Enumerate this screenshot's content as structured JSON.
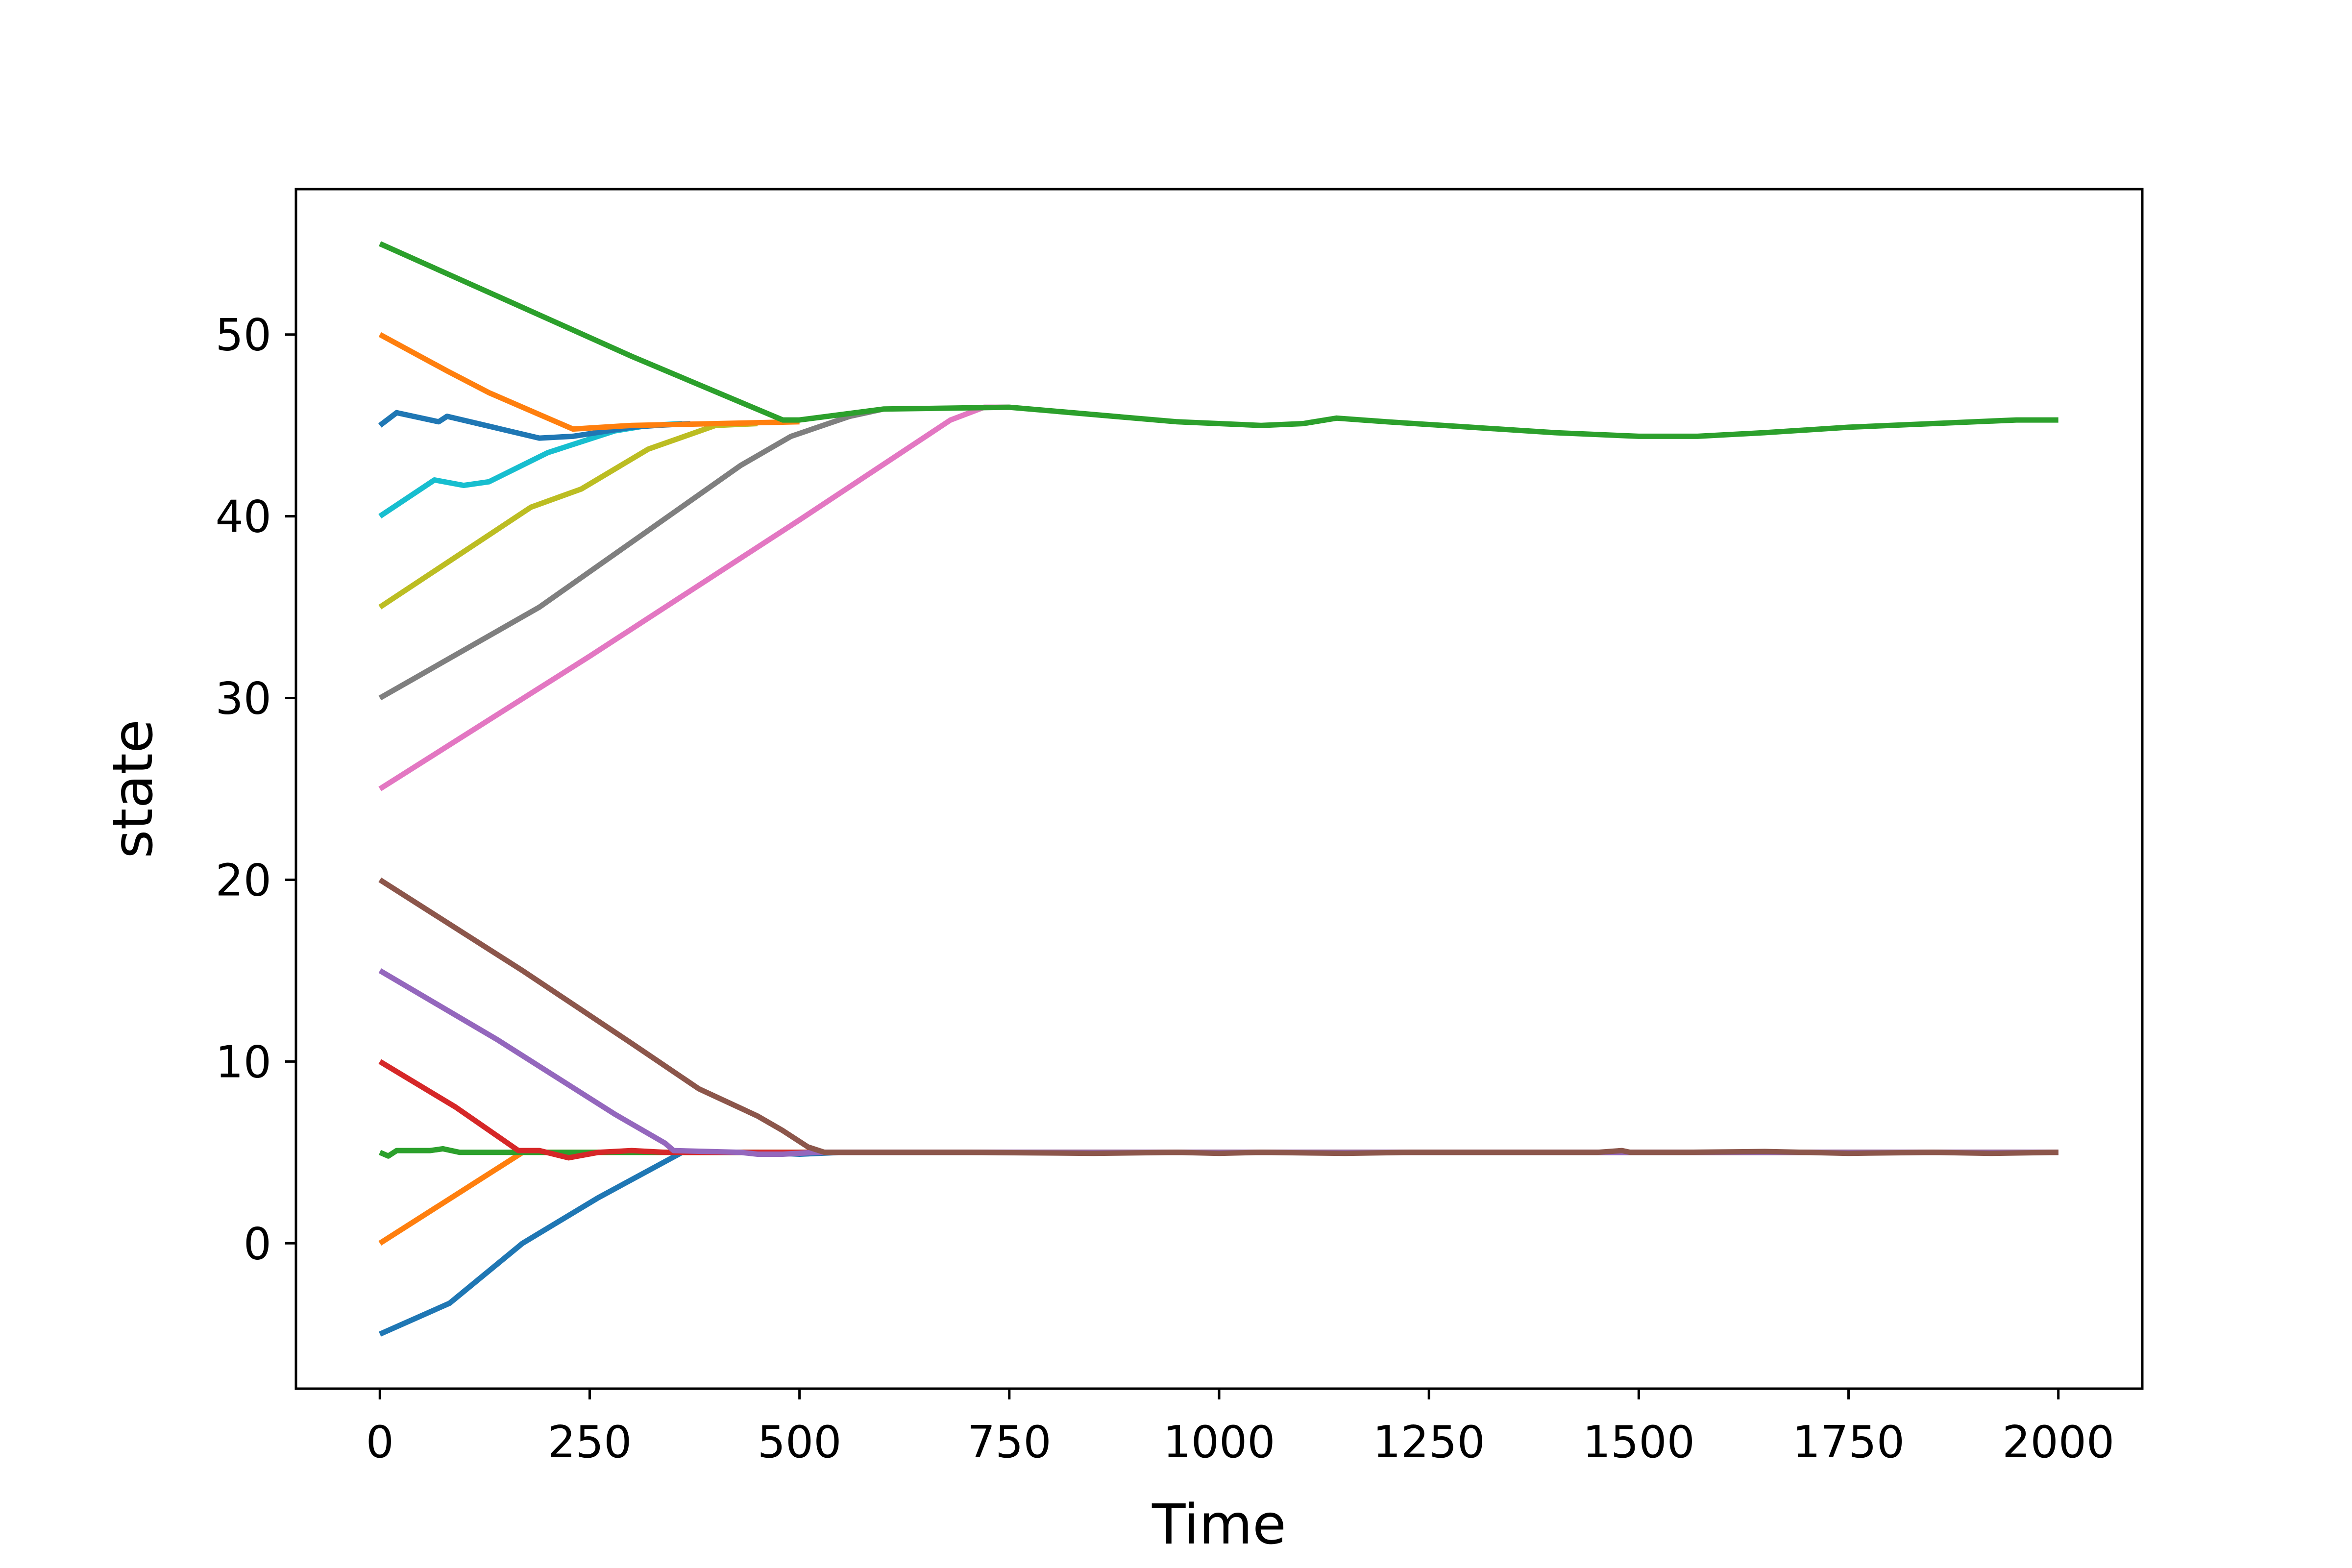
{
  "chart_data": {
    "type": "line",
    "title": "",
    "xlabel": "Time",
    "ylabel": "state",
    "xlim": [
      -100,
      2100
    ],
    "ylim": [
      -8,
      58
    ],
    "xticks": [
      0,
      250,
      500,
      750,
      1000,
      1250,
      1500,
      1750,
      2000
    ],
    "xtick_labels": [
      "0",
      "250",
      "500",
      "750",
      "1000",
      "1250",
      "1500",
      "1750",
      "2000"
    ],
    "yticks": [
      0,
      10,
      20,
      30,
      40,
      50
    ],
    "ytick_labels": [
      "0",
      "10",
      "20",
      "30",
      "40",
      "50"
    ],
    "grid": false,
    "legend": "none",
    "series": [
      {
        "color": "#1f77b4",
        "points": [
          [
            0,
            -5
          ],
          [
            83,
            -3.3
          ],
          [
            170,
            0
          ],
          [
            260,
            2.5
          ],
          [
            360,
            5
          ],
          [
            450,
            5
          ],
          [
            500,
            4.9
          ],
          [
            550,
            5
          ],
          [
            2000,
            5
          ]
        ]
      },
      {
        "color": "#ff7f0e",
        "points": [
          [
            0,
            0
          ],
          [
            170,
            5
          ],
          [
            250,
            5
          ],
          [
            500,
            5
          ],
          [
            2000,
            5
          ]
        ]
      },
      {
        "color": "#2ca02c",
        "points": [
          [
            0,
            5
          ],
          [
            10,
            4.8
          ],
          [
            20,
            5.1
          ],
          [
            60,
            5.1
          ],
          [
            75,
            5.2
          ],
          [
            95,
            5
          ],
          [
            150,
            5
          ],
          [
            300,
            5
          ],
          [
            2000,
            5
          ]
        ]
      },
      {
        "color": "#d62728",
        "points": [
          [
            0,
            10
          ],
          [
            90,
            7.5
          ],
          [
            165,
            5.1
          ],
          [
            190,
            5.1
          ],
          [
            225,
            4.7
          ],
          [
            260,
            5
          ],
          [
            300,
            5.1
          ],
          [
            340,
            5
          ],
          [
            2000,
            5
          ]
        ]
      },
      {
        "color": "#9467bd",
        "points": [
          [
            0,
            15
          ],
          [
            140,
            11.2
          ],
          [
            280,
            7.1
          ],
          [
            340,
            5.5
          ],
          [
            350,
            5.1
          ],
          [
            430,
            5
          ],
          [
            450,
            4.9
          ],
          [
            480,
            4.9
          ],
          [
            520,
            5
          ],
          [
            2000,
            5
          ]
        ]
      },
      {
        "color": "#8c564b",
        "points": [
          [
            0,
            20
          ],
          [
            170,
            15
          ],
          [
            300,
            11
          ],
          [
            380,
            8.5
          ],
          [
            450,
            7
          ],
          [
            480,
            6.2
          ],
          [
            510,
            5.3
          ],
          [
            530,
            5
          ],
          [
            700,
            5
          ],
          [
            850,
            4.95
          ],
          [
            950,
            5
          ],
          [
            1000,
            4.95
          ],
          [
            1050,
            5
          ],
          [
            1150,
            4.95
          ],
          [
            1230,
            5
          ],
          [
            1330,
            5
          ],
          [
            1450,
            5
          ],
          [
            1480,
            5.1
          ],
          [
            1490,
            5
          ],
          [
            1550,
            5
          ],
          [
            1650,
            5.05
          ],
          [
            1750,
            4.95
          ],
          [
            1850,
            5
          ],
          [
            1920,
            4.95
          ],
          [
            2000,
            5
          ]
        ]
      },
      {
        "color": "#e377c2",
        "points": [
          [
            0,
            25
          ],
          [
            250,
            32.3
          ],
          [
            500,
            39.8
          ],
          [
            680,
            45.3
          ],
          [
            720,
            46
          ],
          [
            750,
            46
          ]
        ]
      },
      {
        "color": "#7f7f7f",
        "points": [
          [
            0,
            30
          ],
          [
            190,
            35
          ],
          [
            430,
            42.8
          ],
          [
            490,
            44.4
          ],
          [
            560,
            45.5
          ],
          [
            600,
            45.9
          ]
        ]
      },
      {
        "color": "#bcbd22",
        "points": [
          [
            0,
            35
          ],
          [
            180,
            40.5
          ],
          [
            240,
            41.5
          ],
          [
            320,
            43.7
          ],
          [
            400,
            45
          ],
          [
            450,
            45.1
          ]
        ]
      },
      {
        "color": "#17becf",
        "points": [
          [
            0,
            40
          ],
          [
            65,
            42
          ],
          [
            100,
            41.7
          ],
          [
            130,
            41.9
          ],
          [
            200,
            43.5
          ],
          [
            280,
            44.7
          ],
          [
            320,
            45
          ],
          [
            360,
            45.1
          ]
        ]
      },
      {
        "color": "#1f77b4",
        "points": [
          [
            0,
            45
          ],
          [
            20,
            45.7
          ],
          [
            70,
            45.2
          ],
          [
            80,
            45.5
          ],
          [
            190,
            44.3
          ],
          [
            230,
            44.4
          ],
          [
            300,
            44.9
          ],
          [
            330,
            45
          ],
          [
            370,
            45.1
          ]
        ]
      },
      {
        "color": "#ff7f0e",
        "points": [
          [
            0,
            50
          ],
          [
            80,
            48
          ],
          [
            130,
            46.8
          ],
          [
            230,
            44.8
          ],
          [
            300,
            45
          ],
          [
            400,
            45.1
          ],
          [
            500,
            45.2
          ]
        ]
      },
      {
        "color": "#2ca02c",
        "points": [
          [
            0,
            55
          ],
          [
            160,
            51.7
          ],
          [
            300,
            48.8
          ],
          [
            480,
            45.3
          ],
          [
            500,
            45.3
          ],
          [
            600,
            45.9
          ],
          [
            750,
            46
          ],
          [
            950,
            45.2
          ],
          [
            1050,
            45
          ],
          [
            1100,
            45.1
          ],
          [
            1140,
            45.4
          ],
          [
            1200,
            45.2
          ],
          [
            1300,
            44.9
          ],
          [
            1400,
            44.6
          ],
          [
            1500,
            44.4
          ],
          [
            1570,
            44.4
          ],
          [
            1650,
            44.6
          ],
          [
            1750,
            44.9
          ],
          [
            1850,
            45.1
          ],
          [
            1950,
            45.3
          ],
          [
            2000,
            45.3
          ]
        ]
      }
    ]
  }
}
